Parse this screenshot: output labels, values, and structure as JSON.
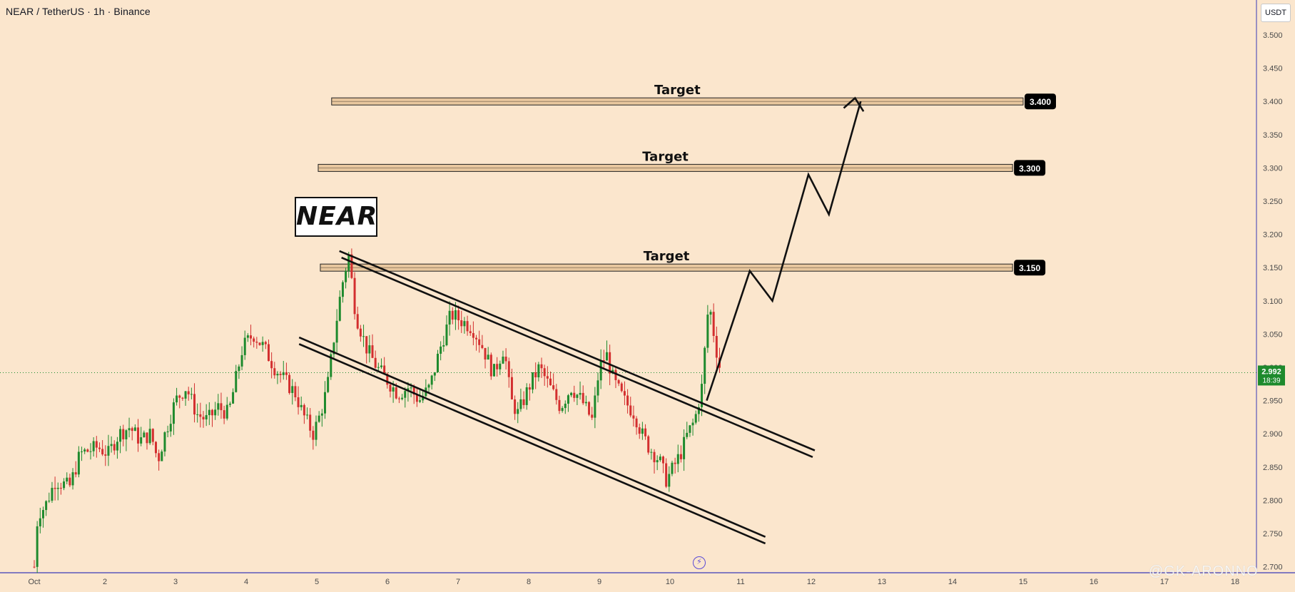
{
  "header": {
    "symbol_title": "NEAR / TetherUS · 1h · Binance",
    "currency": "USDT"
  },
  "logo_text": "NEAR",
  "watermark": "@GK-ARONNO",
  "colors": {
    "background": "#fbe6cd",
    "up_candle": "#1e8a2d",
    "down_candle": "#d32f2f",
    "target_zone": "#e8c79e",
    "axis_line": "#3a3ab8",
    "price_badge": "#1e8a2d",
    "label_badge": "#000000"
  },
  "chart_data": {
    "type": "candlestick",
    "title": "NEAR / TetherUS · 1h · Binance",
    "xlabel": "",
    "ylabel": "",
    "x_ticks": [
      "Oct",
      "2",
      "3",
      "4",
      "5",
      "6",
      "7",
      "8",
      "9",
      "10",
      "11",
      "12",
      "13",
      "14",
      "15",
      "16",
      "17",
      "18"
    ],
    "y_ticks": [
      "3.500",
      "3.450",
      "3.400",
      "3.350",
      "3.300",
      "3.250",
      "3.200",
      "3.150",
      "3.100",
      "3.050",
      "3.000",
      "2.950",
      "2.900",
      "2.850",
      "2.800",
      "2.750",
      "2.700"
    ],
    "ylim": [
      2.7,
      3.52
    ],
    "xlim_days": [
      1,
      18.5
    ],
    "current_price": "2.992",
    "countdown": "18:39",
    "grid": false,
    "price_path": [
      [
        1.0,
        2.7
      ],
      [
        1.05,
        2.78
      ],
      [
        1.15,
        2.79
      ],
      [
        1.3,
        2.83
      ],
      [
        1.5,
        2.82
      ],
      [
        1.65,
        2.87
      ],
      [
        1.9,
        2.88
      ],
      [
        2.05,
        2.87
      ],
      [
        2.2,
        2.9
      ],
      [
        2.35,
        2.91
      ],
      [
        2.5,
        2.89
      ],
      [
        2.65,
        2.9
      ],
      [
        2.75,
        2.86
      ],
      [
        2.85,
        2.9
      ],
      [
        3.0,
        2.95
      ],
      [
        3.15,
        2.97
      ],
      [
        3.3,
        2.93
      ],
      [
        3.45,
        2.92
      ],
      [
        3.6,
        2.94
      ],
      [
        3.75,
        2.93
      ],
      [
        3.85,
        2.98
      ],
      [
        3.95,
        3.03
      ],
      [
        4.1,
        3.05
      ],
      [
        4.25,
        3.03
      ],
      [
        4.4,
        3.0
      ],
      [
        4.55,
        2.98
      ],
      [
        4.7,
        2.96
      ],
      [
        4.8,
        2.93
      ],
      [
        4.95,
        2.9
      ],
      [
        5.05,
        2.93
      ],
      [
        5.15,
        2.97
      ],
      [
        5.25,
        3.05
      ],
      [
        5.35,
        3.12
      ],
      [
        5.45,
        3.17
      ],
      [
        5.55,
        3.08
      ],
      [
        5.7,
        3.03
      ],
      [
        5.85,
        3.0
      ],
      [
        6.0,
        2.98
      ],
      [
        6.15,
        2.96
      ],
      [
        6.3,
        2.97
      ],
      [
        6.45,
        2.95
      ],
      [
        6.6,
        2.97
      ],
      [
        6.75,
        3.03
      ],
      [
        6.9,
        3.08
      ],
      [
        7.05,
        3.07
      ],
      [
        7.2,
        3.06
      ],
      [
        7.35,
        3.03
      ],
      [
        7.5,
        2.99
      ],
      [
        7.65,
        3.03
      ],
      [
        7.75,
        2.95
      ],
      [
        7.85,
        2.93
      ],
      [
        8.0,
        2.97
      ],
      [
        8.15,
        3.0
      ],
      [
        8.3,
        2.97
      ],
      [
        8.45,
        2.94
      ],
      [
        8.6,
        2.97
      ],
      [
        8.75,
        2.95
      ],
      [
        8.9,
        2.92
      ],
      [
        9.0,
        3.0
      ],
      [
        9.1,
        3.02
      ],
      [
        9.2,
        2.98
      ],
      [
        9.35,
        2.95
      ],
      [
        9.5,
        2.93
      ],
      [
        9.6,
        2.9
      ],
      [
        9.7,
        2.88
      ],
      [
        9.85,
        2.86
      ],
      [
        9.95,
        2.83
      ],
      [
        10.05,
        2.85
      ],
      [
        10.15,
        2.87
      ],
      [
        10.25,
        2.9
      ],
      [
        10.35,
        2.92
      ],
      [
        10.45,
        2.97
      ],
      [
        10.55,
        3.1
      ],
      [
        10.65,
        3.03
      ],
      [
        10.72,
        2.992
      ]
    ],
    "target_zones": [
      {
        "label": "Target",
        "price": "3.400",
        "level": 3.4,
        "x_start": 5.21,
        "x_end": 15.0
      },
      {
        "label": "Target",
        "price": "3.300",
        "level": 3.3,
        "x_start": 5.02,
        "x_end": 14.85
      },
      {
        "label": "Target",
        "price": "3.150",
        "level": 3.15,
        "x_start": 5.05,
        "x_end": 14.85
      }
    ],
    "channel_lines": [
      {
        "name": "upper-channel-1",
        "x1": 5.32,
        "y1": 3.175,
        "x2": 12.05,
        "y2": 2.875
      },
      {
        "name": "upper-channel-2",
        "x1": 5.35,
        "y1": 3.165,
        "x2": 12.02,
        "y2": 2.865
      },
      {
        "name": "lower-channel-1",
        "x1": 4.75,
        "y1": 3.045,
        "x2": 11.35,
        "y2": 2.745
      },
      {
        "name": "lower-channel-2",
        "x1": 4.75,
        "y1": 3.035,
        "x2": 11.35,
        "y2": 2.735
      }
    ],
    "projection_path": [
      [
        10.52,
        2.95
      ],
      [
        11.13,
        3.145
      ],
      [
        11.45,
        3.1
      ],
      [
        11.96,
        3.29
      ],
      [
        12.25,
        3.23
      ],
      [
        12.7,
        3.4
      ]
    ],
    "projection_arrowhead": [
      [
        12.46,
        3.39
      ],
      [
        12.62,
        3.405
      ],
      [
        12.74,
        3.385
      ]
    ]
  }
}
